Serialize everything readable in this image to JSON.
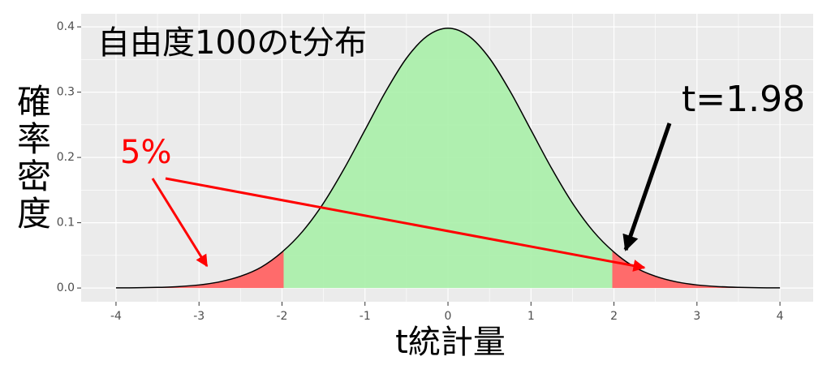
{
  "chart_data": {
    "type": "area",
    "title": "自由度100のt分布",
    "x_label": "t統計量",
    "y_label": "確率密度",
    "annotations": [
      "t=1.98",
      "5%"
    ],
    "critical_value": 1.98,
    "x": [
      -4,
      -3.75,
      -3.5,
      -3.25,
      -3,
      -2.75,
      -2.5,
      -2.25,
      -2,
      -1.75,
      -1.5,
      -1.25,
      -1,
      -0.75,
      -0.5,
      -0.25,
      0,
      0.25,
      0.5,
      0.75,
      1,
      1.25,
      1.5,
      1.75,
      2,
      2.25,
      2.5,
      2.75,
      3,
      3.25,
      3.5,
      3.75,
      4
    ],
    "values": [
      0.0002,
      0.0004,
      0.001,
      0.0022,
      0.0047,
      0.0095,
      0.018,
      0.032,
      0.055,
      0.087,
      0.13,
      0.183,
      0.242,
      0.301,
      0.352,
      0.386,
      0.398,
      0.386,
      0.352,
      0.301,
      0.242,
      0.183,
      0.13,
      0.087,
      0.055,
      0.032,
      0.018,
      0.0095,
      0.0047,
      0.0022,
      0.001,
      0.0004,
      0.0002
    ],
    "center_color": "#a9f0a9",
    "tail_color": "#ff6b6b",
    "line_color": "#000000",
    "xlim": [
      -4.42,
      4.4
    ],
    "ylim": [
      -0.021,
      0.42
    ],
    "xticks": [
      -4,
      -3,
      -2,
      -1,
      0,
      1,
      2,
      3,
      4
    ],
    "yticks": [
      {
        "value": 0,
        "label": "0.0"
      },
      0.1,
      0.2,
      0.3,
      0.4
    ],
    "grid": true
  }
}
